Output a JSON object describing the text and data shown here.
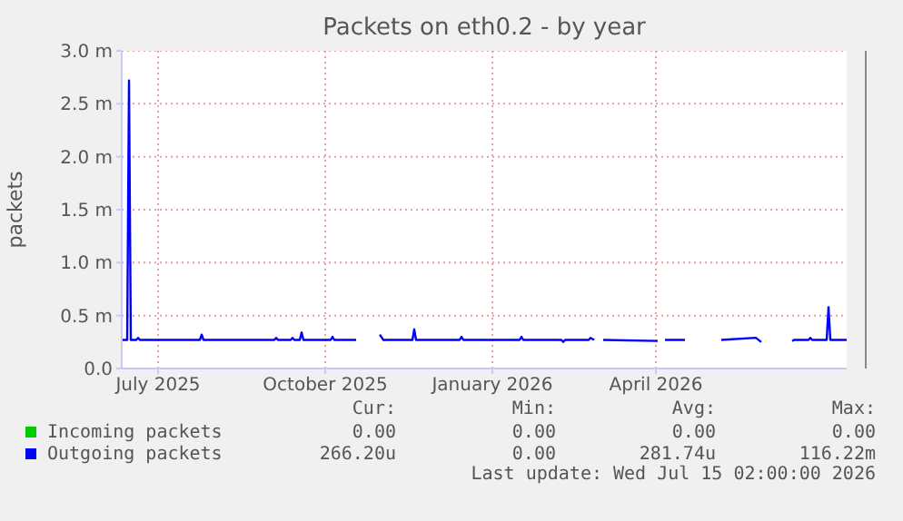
{
  "chart_data": {
    "type": "line",
    "title": "Packets on eth0.2 - by year",
    "ylabel": "packets",
    "x": [
      "2025-06-11",
      "2025-06-14",
      "2025-06-15",
      "2025-06-16",
      "2025-06-19",
      "2025-06-20",
      "2025-06-21",
      "2025-07-24",
      "2025-07-25",
      "2025-07-26",
      "2025-09-03",
      "2025-09-04",
      "2025-09-05",
      "2025-09-12",
      "2025-09-13",
      "2025-09-14",
      "2025-09-17",
      "2025-09-18",
      "2025-09-19",
      "2025-10-04",
      "2025-10-05",
      "2025-10-06",
      "2025-10-18",
      "2025-10-25",
      "2025-10-31",
      "2025-11-02",
      "2025-11-18",
      "2025-11-19",
      "2025-11-20",
      "2025-12-14",
      "2025-12-15",
      "2025-12-16",
      "2026-01-16",
      "2026-01-17",
      "2026-01-18",
      "2026-02-08",
      "2026-02-09",
      "2026-02-10",
      "2026-02-23",
      "2026-02-24",
      "2026-02-26",
      "2026-03-01",
      "2026-03-03",
      "2026-04-02",
      "2026-04-04",
      "2026-04-06",
      "2026-04-17",
      "2026-04-27",
      "2026-05-07",
      "2026-05-26",
      "2026-05-29",
      "2026-06-07",
      "2026-06-15",
      "2026-06-16",
      "2026-06-24",
      "2026-06-25",
      "2026-06-26",
      "2026-07-04",
      "2026-07-05",
      "2026-07-06",
      "2026-07-15"
    ],
    "series": [
      {
        "name": "Incoming packets",
        "color": "#00cc00",
        "values": [
          null,
          null,
          null,
          null,
          null,
          null,
          null,
          null,
          null,
          null,
          null,
          null,
          null,
          null,
          null,
          null,
          null,
          null,
          null,
          null,
          null,
          null,
          null,
          null,
          null,
          null,
          null,
          null,
          null,
          null,
          null,
          null,
          null,
          null,
          null,
          null,
          null,
          null,
          null,
          null,
          null,
          null,
          null,
          null,
          null,
          null,
          null,
          null,
          null,
          null,
          null,
          null,
          null,
          null,
          null,
          null,
          null,
          null,
          null,
          null,
          null
        ]
      },
      {
        "name": "Outgoing packets",
        "color": "#0000ff",
        "values": [
          0.27,
          0.27,
          2.72,
          0.27,
          0.27,
          0.29,
          0.27,
          0.27,
          0.32,
          0.27,
          0.27,
          0.29,
          0.27,
          0.27,
          0.29,
          0.27,
          0.27,
          0.34,
          0.27,
          0.27,
          0.3,
          0.27,
          0.27,
          null,
          0.32,
          0.27,
          0.27,
          0.37,
          0.27,
          0.27,
          0.3,
          0.27,
          0.27,
          0.3,
          0.27,
          0.27,
          0.25,
          0.27,
          0.27,
          0.29,
          0.27,
          null,
          0.27,
          0.26,
          null,
          0.27,
          0.27,
          null,
          0.27,
          0.29,
          0.25,
          null,
          0.26,
          0.27,
          0.27,
          0.29,
          0.27,
          0.27,
          0.58,
          0.27,
          0.27
        ]
      }
    ],
    "xlim": [
      "2025-06-11",
      "2026-07-15"
    ],
    "xticks": [
      {
        "value": "2025-07-01",
        "label": "July 2025"
      },
      {
        "value": "2025-10-01",
        "label": "October 2025"
      },
      {
        "value": "2026-01-01",
        "label": "January 2026"
      },
      {
        "value": "2026-04-01",
        "label": "April 2026"
      }
    ],
    "ylim": [
      0,
      3.0
    ],
    "yticks": [
      {
        "value": 0,
        "label": "0.0"
      },
      {
        "value": 0.5,
        "label": "0.5 m"
      },
      {
        "value": 1.0,
        "label": "1.0 m"
      },
      {
        "value": 1.5,
        "label": "1.5 m"
      },
      {
        "value": 2.0,
        "label": "2.0 m"
      },
      {
        "value": 2.5,
        "label": "2.5 m"
      },
      {
        "value": 3.0,
        "label": "3.0 m"
      }
    ],
    "grid": true,
    "legend": "bottom left",
    "marker": "none",
    "line_style": "solid",
    "annotations": [
      "Cur:",
      "Min:",
      "Avg:",
      "Max:",
      "0.00",
      "0.00",
      "0.00",
      "0.00",
      "266.20u",
      "0.00",
      "281.74u",
      "116.22m",
      "Last update: Wed Jul 15 02:00:00 2026"
    ]
  }
}
